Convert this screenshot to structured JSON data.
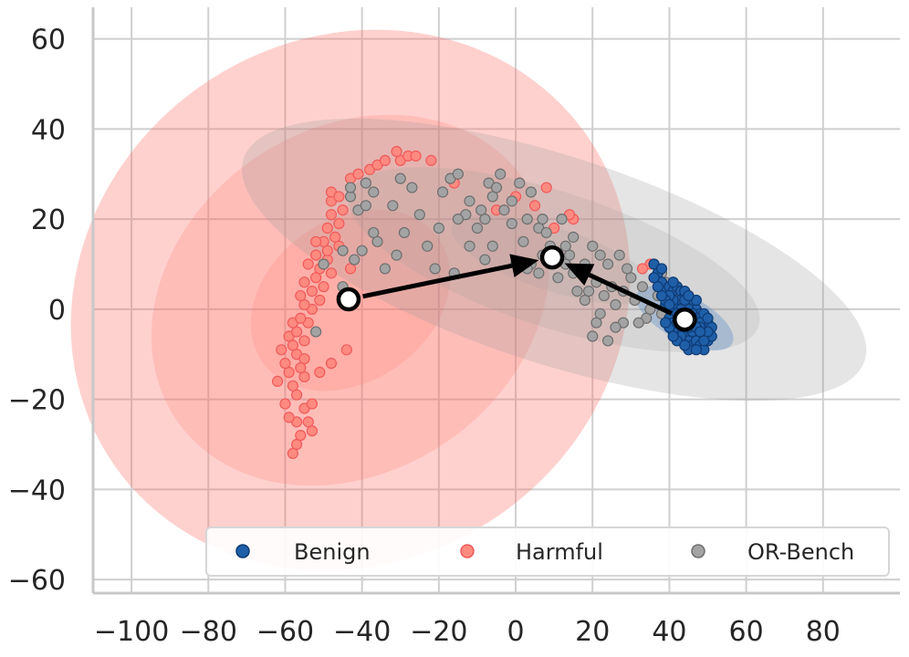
{
  "chart_data": {
    "type": "scatter",
    "title": "",
    "xlabel": "",
    "ylabel": "",
    "xlim": [
      -110,
      100
    ],
    "ylim": [
      -63,
      67
    ],
    "x_ticks": [
      -100,
      -80,
      -60,
      -40,
      -20,
      0,
      20,
      40,
      60,
      80
    ],
    "y_ticks": [
      -60,
      -40,
      -20,
      0,
      20,
      40,
      60
    ],
    "x_tick_labels": [
      "−100",
      "−80",
      "−60",
      "−40",
      "−20",
      "0",
      "20",
      "40",
      "60",
      "80"
    ],
    "y_tick_labels": [
      "−60",
      "−40",
      "−20",
      "0",
      "20",
      "40",
      "60"
    ],
    "grid": true,
    "legend_position": "bottom-right",
    "legend": [
      "Benign",
      "Harmful",
      "OR-Bench"
    ],
    "colors": {
      "Benign": "#1f5fa8",
      "Benign_edge": "#0d3a73",
      "Harmful": "#ff8a80",
      "Harmful_edge": "#f05a5a",
      "OR-Bench": "#a3a3a3",
      "OR-Bench_edge": "#6e6e6e",
      "harmful_ellipse": "#ff6f66",
      "orbench_ellipse": "#9a9a9a",
      "benign_ellipse": "#4f86c6",
      "grid": "#cfcfcf",
      "axis": "#c8c8c8",
      "arrow": "#000000"
    },
    "series": [
      {
        "name": "Harmful",
        "points": [
          [
            -58,
            -32
          ],
          [
            -57,
            -30
          ],
          [
            -56,
            -28
          ],
          [
            -53,
            -27
          ],
          [
            -57,
            -25
          ],
          [
            -54,
            -25
          ],
          [
            -59,
            -24
          ],
          [
            -60,
            -21
          ],
          [
            -55,
            -22
          ],
          [
            -53,
            -21
          ],
          [
            -57,
            -19
          ],
          [
            -58,
            -17
          ],
          [
            -62,
            -16
          ],
          [
            -55,
            -15
          ],
          [
            -59,
            -14
          ],
          [
            -56,
            -13
          ],
          [
            -51,
            -14
          ],
          [
            -60,
            -12
          ],
          [
            -57,
            -10
          ],
          [
            -55,
            -11
          ],
          [
            -61,
            -9
          ],
          [
            -58,
            -8
          ],
          [
            -59,
            -6
          ],
          [
            -55,
            -7
          ],
          [
            -57,
            -5
          ],
          [
            -58,
            -3
          ],
          [
            -54,
            -3
          ],
          [
            -56,
            -2
          ],
          [
            -53,
            0
          ],
          [
            -55,
            1
          ],
          [
            -51,
            2
          ],
          [
            -56,
            3
          ],
          [
            -53,
            4
          ],
          [
            -50,
            5
          ],
          [
            -55,
            6
          ],
          [
            -52,
            7
          ],
          [
            -48,
            8
          ],
          [
            -51,
            9
          ],
          [
            -54,
            10
          ],
          [
            -49,
            11
          ],
          [
            -52,
            12
          ],
          [
            -49,
            13
          ],
          [
            -46,
            14
          ],
          [
            -50,
            15
          ],
          [
            -52,
            15
          ],
          [
            -47,
            16
          ],
          [
            -49,
            18
          ],
          [
            -46,
            19
          ],
          [
            -48,
            21
          ],
          [
            -45,
            22
          ],
          [
            -48,
            24
          ],
          [
            -48,
            26
          ],
          [
            -46,
            25
          ],
          [
            -43,
            29
          ],
          [
            -41,
            30
          ],
          [
            -38,
            31
          ],
          [
            -36,
            32
          ],
          [
            -34,
            33
          ],
          [
            -30,
            33
          ],
          [
            -28,
            34
          ],
          [
            -31,
            35
          ],
          [
            -26,
            34
          ],
          [
            -22,
            33
          ],
          [
            -43,
            9
          ],
          [
            -44,
            -9
          ],
          [
            -48,
            -12
          ],
          [
            -5,
            22
          ],
          [
            0,
            25
          ],
          [
            5,
            23
          ],
          [
            8,
            27
          ],
          [
            15,
            20
          ],
          [
            10,
            18
          ],
          [
            35,
            10
          ],
          [
            36,
            7
          ],
          [
            45,
            3
          ],
          [
            33,
            9
          ],
          [
            14,
            21
          ],
          [
            -16,
            28
          ]
        ]
      },
      {
        "name": "OR-Bench",
        "points": [
          [
            -43,
            25
          ],
          [
            -41,
            22
          ],
          [
            -39,
            23
          ],
          [
            -37,
            26
          ],
          [
            -39,
            28
          ],
          [
            -43,
            27
          ],
          [
            -32,
            23
          ],
          [
            -30,
            29
          ],
          [
            -27,
            27
          ],
          [
            -37,
            17
          ],
          [
            -29,
            17
          ],
          [
            -40,
            13
          ],
          [
            -34,
            9
          ],
          [
            -45,
            13
          ],
          [
            -45,
            5
          ],
          [
            -52,
            -5
          ],
          [
            -19,
            26
          ],
          [
            -17,
            29
          ],
          [
            -15,
            30
          ],
          [
            -12,
            24
          ],
          [
            -9,
            22
          ],
          [
            -6,
            25
          ],
          [
            -3,
            22
          ],
          [
            -1,
            24
          ],
          [
            -7,
            28
          ],
          [
            -4,
            30
          ],
          [
            -13,
            21
          ],
          [
            -20,
            18
          ],
          [
            -15,
            20
          ],
          [
            -10,
            18
          ],
          [
            -6,
            14
          ],
          [
            -1,
            19
          ],
          [
            3,
            20
          ],
          [
            -8,
            20
          ],
          [
            -5,
            27
          ],
          [
            1,
            28
          ],
          [
            4,
            26
          ],
          [
            6,
            18
          ],
          [
            8,
            17
          ],
          [
            10,
            12
          ],
          [
            12,
            20
          ],
          [
            14,
            12
          ],
          [
            15,
            16
          ],
          [
            18,
            10
          ],
          [
            20,
            14
          ],
          [
            22,
            12
          ],
          [
            17,
            8
          ],
          [
            19,
            4
          ],
          [
            21,
            6
          ],
          [
            24,
            10
          ],
          [
            25,
            5
          ],
          [
            28,
            4
          ],
          [
            29,
            9
          ],
          [
            30,
            7
          ],
          [
            27,
            12
          ],
          [
            23,
            3
          ],
          [
            26,
            1
          ],
          [
            28,
            -3
          ],
          [
            31,
            2
          ],
          [
            33,
            5
          ],
          [
            35,
            0
          ],
          [
            37,
            3
          ],
          [
            38,
            -1
          ],
          [
            40,
            4
          ],
          [
            39,
            6
          ],
          [
            41,
            1
          ],
          [
            42,
            5
          ],
          [
            34,
            -2
          ],
          [
            32,
            -3
          ],
          [
            20,
            -6
          ],
          [
            21,
            -3
          ],
          [
            22,
            -1
          ],
          [
            24,
            -7
          ],
          [
            26,
            -4
          ],
          [
            4,
            10
          ],
          [
            6,
            8
          ],
          [
            3,
            9
          ],
          [
            11,
            7
          ],
          [
            13,
            10
          ],
          [
            16,
            4
          ],
          [
            18,
            2
          ],
          [
            15,
            8
          ],
          [
            13,
            14
          ],
          [
            9,
            14
          ],
          [
            7,
            12
          ],
          [
            36,
            10
          ],
          [
            38,
            8
          ],
          [
            40,
            2
          ],
          [
            43,
            3
          ],
          [
            -50,
            10
          ],
          [
            -42,
            11
          ],
          [
            -36,
            15
          ],
          [
            -25,
            21
          ],
          [
            -31,
            12
          ],
          [
            -23,
            14
          ],
          [
            -21,
            9
          ],
          [
            -12,
            14
          ],
          [
            -16,
            8
          ],
          [
            -8,
            11
          ],
          [
            0,
            10
          ],
          [
            2,
            15
          ],
          [
            7,
            20
          ]
        ]
      },
      {
        "name": "Benign",
        "points": [
          [
            36,
            10
          ],
          [
            37,
            8
          ],
          [
            38,
            6
          ],
          [
            39,
            4
          ],
          [
            40,
            5
          ],
          [
            41,
            4
          ],
          [
            42,
            5
          ],
          [
            43,
            4
          ],
          [
            44,
            3
          ],
          [
            45,
            2
          ],
          [
            46,
            1
          ],
          [
            47,
            0
          ],
          [
            48,
            -1
          ],
          [
            49,
            -2
          ],
          [
            50,
            -3
          ],
          [
            51,
            -4
          ],
          [
            49,
            -5
          ],
          [
            48,
            -6
          ],
          [
            47,
            -7
          ],
          [
            46,
            -6
          ],
          [
            45,
            -5
          ],
          [
            44,
            -4
          ],
          [
            43,
            -3
          ],
          [
            42,
            -2
          ],
          [
            41,
            -1
          ],
          [
            40,
            0
          ],
          [
            39,
            1
          ],
          [
            40,
            -2
          ],
          [
            41,
            -3
          ],
          [
            42,
            -4
          ],
          [
            43,
            -5
          ],
          [
            44,
            -6
          ],
          [
            45,
            -7
          ],
          [
            46,
            -8
          ],
          [
            47,
            -7
          ],
          [
            48,
            -8
          ],
          [
            49,
            -9
          ],
          [
            50,
            -7
          ],
          [
            51,
            -6
          ],
          [
            42,
            1
          ],
          [
            43,
            2
          ],
          [
            44,
            1
          ],
          [
            45,
            0
          ],
          [
            46,
            -1
          ],
          [
            47,
            -2
          ],
          [
            48,
            -3
          ],
          [
            46,
            -3
          ],
          [
            45,
            -2
          ],
          [
            44,
            -1
          ],
          [
            43,
            0
          ],
          [
            42,
            -1
          ],
          [
            41,
            2
          ],
          [
            40,
            3
          ],
          [
            39,
            2
          ],
          [
            38,
            3
          ],
          [
            37,
            5
          ],
          [
            36,
            7
          ],
          [
            38,
            9
          ],
          [
            41,
            6
          ],
          [
            44,
            4
          ],
          [
            47,
            2
          ],
          [
            49,
            -1
          ],
          [
            50,
            -5
          ],
          [
            48,
            -4
          ],
          [
            46,
            -5
          ],
          [
            43,
            -6
          ],
          [
            41,
            -5
          ],
          [
            40,
            -4
          ],
          [
            39,
            -3
          ],
          [
            42,
            -7
          ],
          [
            45,
            -9
          ],
          [
            47,
            -9
          ],
          [
            49,
            -7
          ],
          [
            50,
            -2
          ],
          [
            44,
            -8
          ],
          [
            42,
            -3
          ],
          [
            40,
            1
          ],
          [
            45,
            -4
          ],
          [
            46,
            -2
          ],
          [
            47,
            -4
          ],
          [
            48,
            -5
          ],
          [
            41,
            -6
          ],
          [
            43,
            -1
          ],
          [
            44,
            2
          ],
          [
            45,
            3
          ]
        ]
      }
    ],
    "ellipses": [
      {
        "name": "harmful-outer",
        "cx": -43,
        "cy": 2,
        "rx": 75,
        "ry": 58,
        "angle": 35,
        "color": "#ff6f66",
        "opacity": 0.32
      },
      {
        "name": "harmful-inner",
        "cx": -43,
        "cy": 2,
        "rx": 55,
        "ry": 38,
        "angle": 35,
        "color": "#ff6f66",
        "opacity": 0.2
      },
      {
        "name": "harmful-core",
        "cx": -43,
        "cy": 2,
        "rx": 28,
        "ry": 18,
        "angle": 35,
        "color": "#ff6f66",
        "opacity": 0.18
      },
      {
        "name": "orbench-outer",
        "cx": 10,
        "cy": 11,
        "rx": 85,
        "ry": 23,
        "angle": -18,
        "color": "#9a9a9a",
        "opacity": 0.26
      },
      {
        "name": "orbench-inner",
        "cx": 10,
        "cy": 11,
        "rx": 56,
        "ry": 15,
        "angle": -18,
        "color": "#9a9a9a",
        "opacity": 0.2
      },
      {
        "name": "orbench-core",
        "cx": 10,
        "cy": 11,
        "rx": 28,
        "ry": 7,
        "angle": -18,
        "color": "#9a9a9a",
        "opacity": 0.16
      },
      {
        "name": "benign-outer",
        "cx": 44,
        "cy": -2,
        "rx": 14,
        "ry": 5,
        "angle": -28,
        "color": "#4f86c6",
        "opacity": 0.35
      }
    ],
    "centroids": [
      {
        "name": "Harmful",
        "x": -43.5,
        "y": 2.2
      },
      {
        "name": "OR-Bench",
        "x": 9.5,
        "y": 11.5
      },
      {
        "name": "Benign",
        "x": 44,
        "y": -2.3
      }
    ],
    "arrows": [
      {
        "from": [
          -43.5,
          2.2
        ],
        "to": [
          9.5,
          11.5
        ]
      },
      {
        "from": [
          44,
          -2.3
        ],
        "to": [
          9.5,
          11.5
        ]
      }
    ]
  }
}
